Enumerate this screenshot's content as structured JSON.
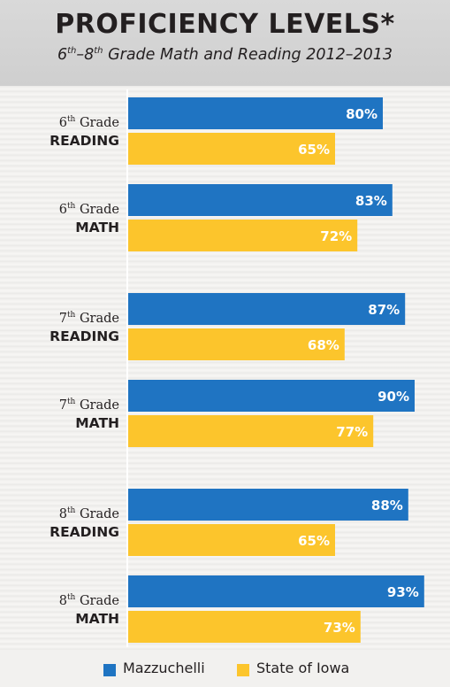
{
  "header": {
    "title": "PROFICIENCY LEVELS*",
    "subtitle_start": "6",
    "subtitle_sup1": "th",
    "subtitle_mid": "–8",
    "subtitle_sup2": "th",
    "subtitle_end": " Grade Math and Reading 2012–2013"
  },
  "colors": {
    "mazzuchelli": "#1f74c2",
    "state_of_iowa": "#fcc52c",
    "header_bg": "#d4d4d4",
    "text": "#231f20"
  },
  "chart_data": {
    "type": "bar",
    "orientation": "horizontal",
    "title": "PROFICIENCY LEVELS*",
    "subtitle": "6th–8th Grade Math and Reading 2012–2013",
    "categories": [
      {
        "grade_num": "6",
        "grade_sup": "th",
        "grade_word": "Grade",
        "subject": "READING"
      },
      {
        "grade_num": "6",
        "grade_sup": "th",
        "grade_word": "Grade",
        "subject": "MATH"
      },
      {
        "grade_num": "7",
        "grade_sup": "th",
        "grade_word": "Grade",
        "subject": "READING"
      },
      {
        "grade_num": "7",
        "grade_sup": "th",
        "grade_word": "Grade",
        "subject": "MATH"
      },
      {
        "grade_num": "8",
        "grade_sup": "th",
        "grade_word": "Grade",
        "subject": "READING"
      },
      {
        "grade_num": "8",
        "grade_sup": "th",
        "grade_word": "Grade",
        "subject": "MATH"
      }
    ],
    "series": [
      {
        "name": "Mazzuchelli",
        "color": "#1f74c2",
        "values": [
          80,
          83,
          87,
          90,
          88,
          93
        ],
        "labels": [
          "80%",
          "83%",
          "87%",
          "90%",
          "88%",
          "93%"
        ]
      },
      {
        "name": "State of Iowa",
        "color": "#fcc52c",
        "values": [
          65,
          72,
          68,
          77,
          65,
          73
        ],
        "labels": [
          "65%",
          "72%",
          "68%",
          "77%",
          "65%",
          "73%"
        ]
      }
    ],
    "xlim": [
      0,
      100
    ],
    "legend": "bottom",
    "grid": false
  }
}
